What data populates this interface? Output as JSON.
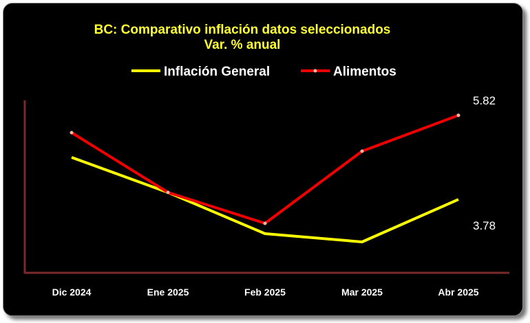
{
  "chart_data": {
    "type": "line",
    "title": "BC: Comparativo inflación datos seleccionados",
    "subtitle": "Var. % anual",
    "categories": [
      "Dic 2024",
      "Ene 2025",
      "Feb 2025",
      "Mar 2025",
      "Abr 2025"
    ],
    "series": [
      {
        "name": "Inflación General",
        "color": "#ffff00",
        "values": [
          4.8,
          3.95,
          2.95,
          2.75,
          3.78
        ]
      },
      {
        "name": "Alimentos",
        "color": "#ee0000",
        "values": [
          5.4,
          3.95,
          3.2,
          4.95,
          5.82
        ]
      }
    ],
    "data_labels": [
      {
        "series": 1,
        "index": 4,
        "text": "5.82"
      },
      {
        "series": 0,
        "index": 4,
        "text": "3.78"
      }
    ],
    "ylim": [
      2.0,
      6.5
    ],
    "xlabel": "",
    "ylabel": "",
    "grid": false,
    "legend": "top",
    "axis_color": "#7a2a2a"
  }
}
